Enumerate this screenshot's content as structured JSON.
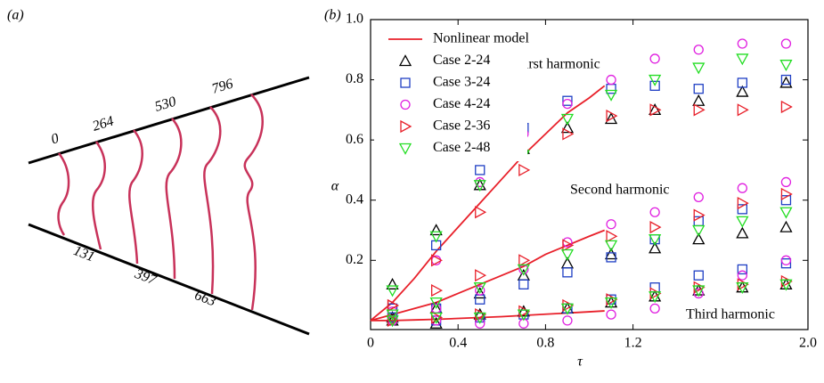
{
  "panel_labels": [
    "(a)",
    "(b)"
  ],
  "diagram": {
    "top_labels": [
      "0",
      "264",
      "530",
      "796"
    ],
    "bottom_labels": [
      "131",
      "397",
      "663"
    ]
  },
  "chart_data": {
    "type": "scatter",
    "xlabel": "τ",
    "ylabel": "α",
    "xlim": [
      0,
      2.0
    ],
    "ylim": [
      -0.03,
      1.0
    ],
    "xticks": [
      0,
      0.4,
      0.8,
      1.2,
      {
        "value": 2,
        "label": "2.0"
      }
    ],
    "yticks": [
      0.2,
      0.4,
      0.6,
      0.8,
      {
        "value": 1,
        "label": "1.0"
      }
    ],
    "grid": false,
    "legend": "upper left",
    "annotations": [
      "First harmonic",
      "Second harmonic",
      "Third harmonic"
    ],
    "series": [
      {
        "name": "Nonlinear model",
        "type": "line",
        "marker": "line",
        "color": "#e8202a",
        "x": [
          0,
          0.1,
          0.2,
          0.3,
          0.4,
          0.5,
          0.6,
          0.7,
          0.8,
          0.9,
          1.0,
          1.07,
          1.07,
          0,
          0.1,
          0.2,
          0.3,
          0.4,
          0.5,
          0.6,
          0.7,
          0.8,
          0.9,
          1.0,
          1.07,
          1.07,
          0,
          0.1,
          0.2,
          0.3,
          0.4,
          0.5,
          0.6,
          0.7,
          0.8,
          0.9,
          1.0,
          1.07
        ],
        "values": [
          0,
          0.06,
          0.14,
          0.23,
          0.31,
          0.39,
          0.47,
          0.55,
          0.62,
          0.69,
          0.74,
          0.78,
          null,
          0,
          0.02,
          0.04,
          0.06,
          0.09,
          0.12,
          0.15,
          0.18,
          0.22,
          0.25,
          0.28,
          0.3,
          null,
          0,
          0,
          0.002,
          0.004,
          0.007,
          0.01,
          0.013,
          0.017,
          0.021,
          0.025,
          0.029,
          0.032
        ]
      },
      {
        "name": "Case 2-24",
        "type": "scatter",
        "marker": "triangle-up",
        "color": "#000000",
        "x": [
          0.1,
          0.3,
          0.5,
          0.7,
          0.9,
          1.1,
          1.3,
          1.5,
          1.7,
          1.9,
          0.1,
          0.3,
          0.5,
          0.7,
          0.9,
          1.1,
          1.3,
          1.5,
          1.7,
          1.9,
          0.1,
          0.3,
          0.5,
          0.7,
          0.9,
          1.1,
          1.3,
          1.5,
          1.7,
          1.9
        ],
        "values": [
          0.12,
          0.3,
          0.45,
          0.57,
          0.64,
          0.67,
          0.7,
          0.73,
          0.76,
          0.79,
          0.01,
          0.04,
          0.09,
          0.15,
          0.19,
          0.22,
          0.24,
          0.27,
          0.29,
          0.31,
          0,
          -0.01,
          0.02,
          0.03,
          0.04,
          0.06,
          0.08,
          0.1,
          0.11,
          0.12
        ]
      },
      {
        "name": "Case 3-24",
        "type": "scatter",
        "marker": "square",
        "color": "#1f3fc4",
        "x": [
          0.1,
          0.3,
          0.5,
          0.7,
          0.9,
          1.1,
          1.3,
          1.5,
          1.7,
          1.9,
          0.1,
          0.3,
          0.5,
          0.7,
          0.9,
          1.1,
          1.3,
          1.5,
          1.7,
          1.9,
          0.1,
          0.3,
          0.5,
          0.7,
          0.9,
          1.1,
          1.3,
          1.5,
          1.7,
          1.9
        ],
        "values": [
          0.04,
          0.25,
          0.5,
          0.64,
          0.73,
          0.77,
          0.78,
          0.77,
          0.79,
          0.8,
          0.01,
          0.04,
          0.07,
          0.12,
          0.16,
          0.21,
          0.27,
          0.33,
          0.37,
          0.4,
          0.01,
          0,
          0.01,
          0.02,
          0.04,
          0.07,
          0.11,
          0.15,
          0.17,
          0.19
        ]
      },
      {
        "name": "Case 4-24",
        "type": "scatter",
        "marker": "circle",
        "color": "#e020e0",
        "x": [
          0.1,
          0.3,
          0.5,
          0.7,
          0.9,
          1.1,
          1.3,
          1.5,
          1.7,
          1.9,
          0.1,
          0.3,
          0.5,
          0.7,
          0.9,
          1.1,
          1.3,
          1.5,
          1.7,
          1.9,
          0.1,
          0.3,
          0.5,
          0.7,
          0.9,
          1.1,
          1.3,
          1.5,
          1.7,
          1.9
        ],
        "values": [
          0.03,
          0.2,
          0.46,
          0.62,
          0.72,
          0.8,
          0.87,
          0.9,
          0.92,
          0.92,
          0,
          0.04,
          0.1,
          0.17,
          0.26,
          0.32,
          0.36,
          0.41,
          0.44,
          0.46,
          0,
          0,
          -0.01,
          -0.01,
          0,
          0.02,
          0.04,
          0.09,
          0.15,
          0.2
        ]
      },
      {
        "name": "Case 2-36",
        "type": "scatter",
        "marker": "triangle-right",
        "color": "#e8202a",
        "x": [
          0.1,
          0.3,
          0.5,
          0.7,
          0.9,
          1.1,
          1.3,
          1.5,
          1.7,
          1.9,
          0.1,
          0.3,
          0.5,
          0.7,
          0.9,
          1.1,
          1.3,
          1.5,
          1.7,
          1.9,
          0.1,
          0.3,
          0.5,
          0.7,
          0.9,
          1.1,
          1.3,
          1.5,
          1.7,
          1.9
        ],
        "values": [
          0.05,
          0.2,
          0.36,
          0.5,
          0.62,
          0.68,
          0.7,
          0.7,
          0.7,
          0.71,
          0.05,
          0.1,
          0.15,
          0.2,
          0.25,
          0.28,
          0.31,
          0.35,
          0.39,
          0.42,
          0,
          0.01,
          0.02,
          0.03,
          0.05,
          0.07,
          0.09,
          0.11,
          0.12,
          0.13
        ]
      },
      {
        "name": "Case 2-48",
        "type": "scatter",
        "marker": "triangle-down",
        "color": "#22dd22",
        "x": [
          0.1,
          0.3,
          0.5,
          0.7,
          0.9,
          1.1,
          1.3,
          1.5,
          1.7,
          1.9,
          0.1,
          0.3,
          0.5,
          0.7,
          0.9,
          1.1,
          1.3,
          1.5,
          1.7,
          1.9,
          0.1,
          0.3,
          0.5,
          0.7,
          0.9,
          1.1,
          1.3,
          1.5,
          1.7,
          1.9
        ],
        "values": [
          0.1,
          0.28,
          0.45,
          0.55,
          0.67,
          0.75,
          0.8,
          0.84,
          0.87,
          0.85,
          0.02,
          0.06,
          0.11,
          0.17,
          0.22,
          0.25,
          0.27,
          0.3,
          0.33,
          0.36,
          0,
          0.01,
          0.01,
          0.02,
          0.04,
          0.06,
          0.08,
          0.1,
          0.11,
          0.12
        ]
      }
    ]
  }
}
